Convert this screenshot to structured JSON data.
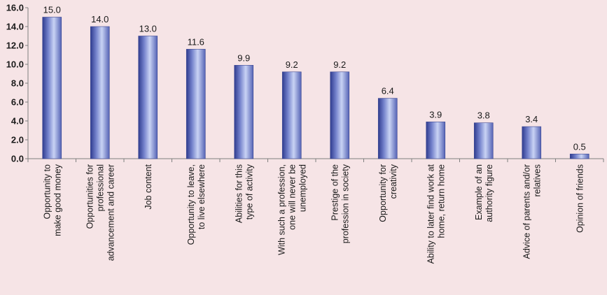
{
  "chart_data": {
    "type": "bar",
    "title": "",
    "xlabel": "",
    "ylabel": "",
    "ylim": [
      0,
      16
    ],
    "yticks": [
      "0.0",
      "2.0",
      "4.0",
      "6.0",
      "8.0",
      "10.0",
      "12.0",
      "14.0",
      "16.0"
    ],
    "grid": false,
    "legend": "none",
    "bar_color": "#4f5db0",
    "background_color": "#f6e4e6",
    "categories": [
      [
        "Opportunity to",
        "make good money"
      ],
      [
        "Opportunities for",
        "professional",
        "advancement and career"
      ],
      [
        "Job content"
      ],
      [
        "Opportunity to leave,",
        "to live elsewhere"
      ],
      [
        "Abilities for this",
        "type of activity"
      ],
      [
        "With such a profession,",
        "one will never be",
        "unemployed"
      ],
      [
        "Prestige of the",
        "profession in society"
      ],
      [
        "Opportunity for",
        "creativity"
      ],
      [
        "Ability to later find work at",
        "home, return home"
      ],
      [
        "Example of an",
        "authority figure"
      ],
      [
        "Advice of parents and/or",
        "relatives"
      ],
      [
        "Opinion of friends"
      ]
    ],
    "values": [
      15.0,
      14.0,
      13.0,
      11.6,
      9.9,
      9.2,
      9.2,
      6.4,
      3.9,
      3.8,
      3.4,
      0.5
    ],
    "data_labels": [
      "15.0",
      "14.0",
      "13.0",
      "11.6",
      "9.9",
      "9.2",
      "9.2",
      "6.4",
      "3.9",
      "3.8",
      "3.4",
      "0.5"
    ]
  }
}
